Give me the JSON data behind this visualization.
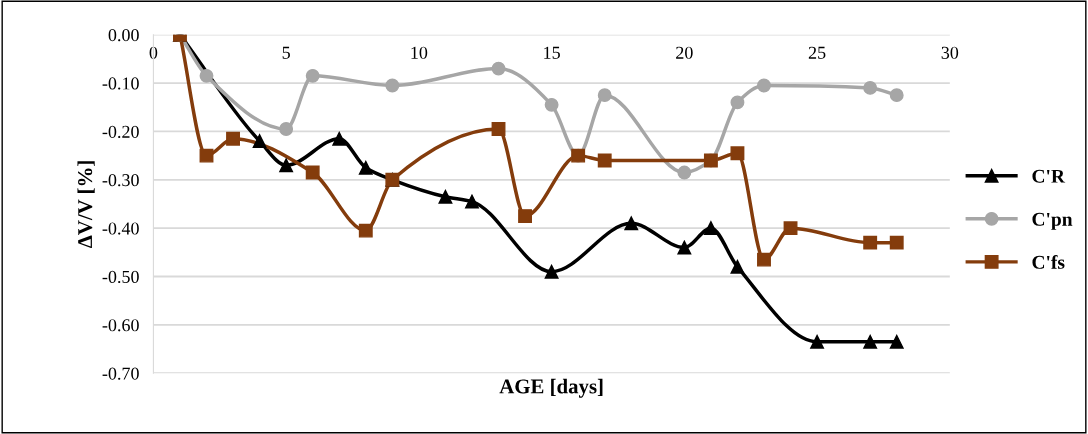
{
  "chart_data": {
    "type": "line",
    "xlabel": "AGE [days]",
    "ylabel": "ΔV/V [%]",
    "xlim": [
      0,
      30
    ],
    "xticks": [
      0,
      5,
      10,
      15,
      20,
      25,
      30
    ],
    "ylim": [
      -0.7,
      0
    ],
    "yticks": [
      {
        "value": 0,
        "label": "0.00"
      },
      {
        "value": -0.1,
        "label": "-0.10"
      },
      {
        "value": -0.2,
        "label": "-0.20"
      },
      {
        "value": -0.3,
        "label": "-0.30"
      },
      {
        "value": -0.4,
        "label": "-0.40"
      },
      {
        "value": -0.5,
        "label": "-0.50"
      },
      {
        "value": -0.6,
        "label": "-0.60"
      },
      {
        "value": -0.7,
        "label": "-0.70"
      }
    ],
    "grid": "y",
    "legend": "right",
    "series": [
      {
        "name": "C'R",
        "color": "#000000",
        "marker": "triangle",
        "x": [
          1,
          4,
          5,
          7,
          8,
          9,
          11,
          12,
          15,
          18,
          20,
          21,
          22,
          25,
          27,
          28
        ],
        "values": [
          0,
          -0.22,
          -0.27,
          -0.215,
          -0.275,
          -0.3,
          -0.335,
          -0.345,
          -0.49,
          -0.39,
          -0.44,
          -0.4,
          -0.48,
          -0.635,
          -0.635,
          -0.635
        ]
      },
      {
        "name": "C'pn",
        "color": "#a6a6a6",
        "marker": "circle",
        "x": [
          1,
          2,
          5,
          6,
          9,
          13,
          15,
          16,
          17,
          20,
          21,
          22,
          23,
          27,
          28
        ],
        "values": [
          0,
          -0.085,
          -0.195,
          -0.085,
          -0.105,
          -0.07,
          -0.145,
          -0.25,
          -0.125,
          -0.285,
          -0.26,
          -0.14,
          -0.105,
          -0.11,
          -0.125
        ]
      },
      {
        "name": "C'fs",
        "color": "#843c0c",
        "marker": "square",
        "x": [
          1,
          2,
          3,
          6,
          8,
          9,
          13,
          14,
          16,
          17,
          21,
          22,
          23,
          24,
          27,
          28
        ],
        "values": [
          0,
          -0.25,
          -0.215,
          -0.285,
          -0.405,
          -0.3,
          -0.195,
          -0.375,
          -0.25,
          -0.26,
          -0.26,
          -0.245,
          -0.465,
          -0.4,
          -0.43,
          -0.43
        ]
      }
    ]
  }
}
